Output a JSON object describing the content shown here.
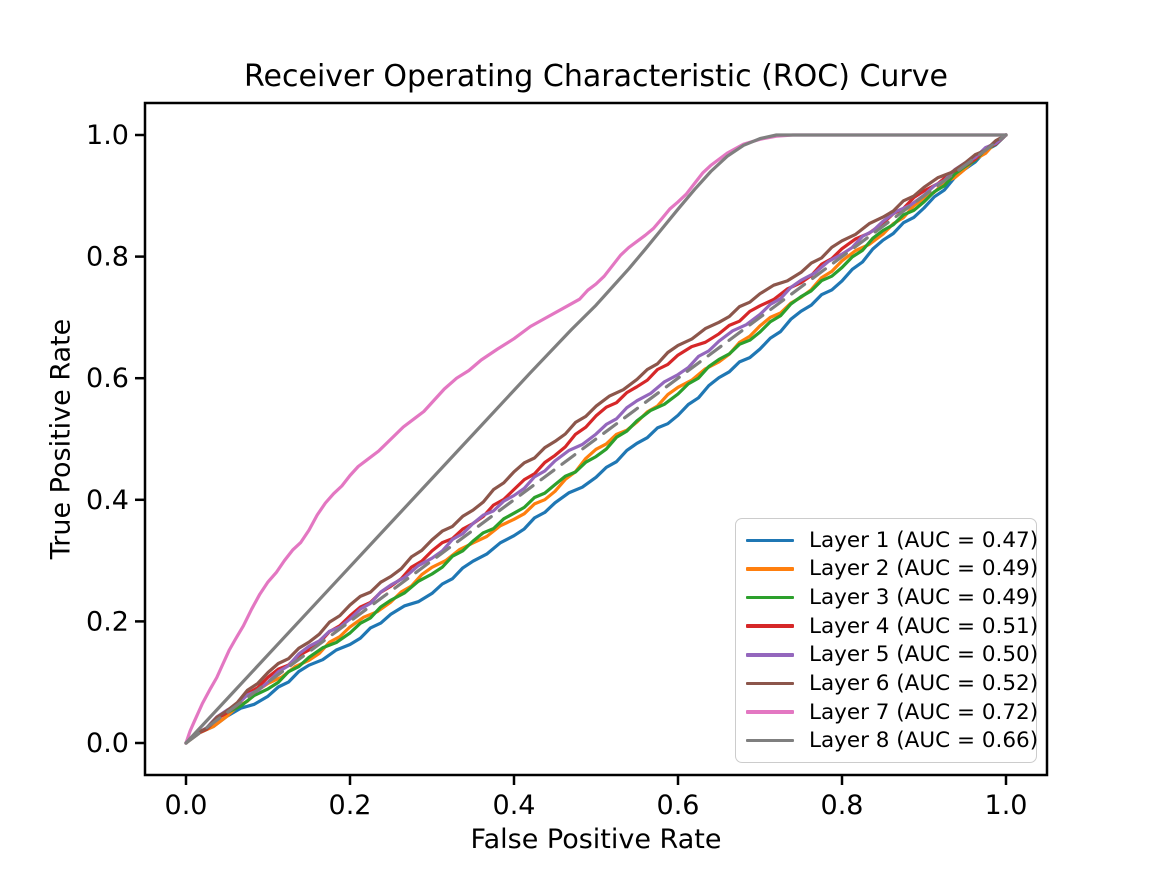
{
  "figure": {
    "background": "#ffffff",
    "axis_color": "#000000",
    "tick_label_color": "#000000"
  },
  "chart_data": {
    "type": "line",
    "title": "Receiver Operating Characteristic (ROC) Curve",
    "xlabel": "False Positive Rate",
    "ylabel": "True Positive Rate",
    "xlim": [
      -0.05,
      1.05
    ],
    "ylim": [
      -0.05,
      1.05
    ],
    "grid": false,
    "legend_position": "lower right",
    "legend_border_color": "#cccccc",
    "xticks": {
      "values": [
        0.0,
        0.2,
        0.4,
        0.6,
        0.8,
        1.0
      ],
      "labels": [
        "0.0",
        "0.2",
        "0.4",
        "0.6",
        "0.8",
        "1.0"
      ]
    },
    "yticks": {
      "values": [
        0.0,
        0.2,
        0.4,
        0.6,
        0.8,
        1.0
      ],
      "labels": [
        "0.0",
        "0.2",
        "0.4",
        "0.6",
        "0.8",
        "1.0"
      ]
    },
    "series": [
      {
        "name": "layer-1",
        "label": "Layer 1 (AUC = 0.47)",
        "auc": 0.47,
        "color": "#1f77b4",
        "style": "solid",
        "noisy": true,
        "in_legend": true,
        "points": [
          [
            0,
            0
          ],
          [
            0.05,
            0.044
          ],
          [
            0.1,
            0.077
          ],
          [
            0.15,
            0.128
          ],
          [
            0.2,
            0.162
          ],
          [
            0.25,
            0.212
          ],
          [
            0.3,
            0.246
          ],
          [
            0.35,
            0.299
          ],
          [
            0.4,
            0.341
          ],
          [
            0.45,
            0.395
          ],
          [
            0.5,
            0.437
          ],
          [
            0.55,
            0.493
          ],
          [
            0.6,
            0.539
          ],
          [
            0.65,
            0.601
          ],
          [
            0.7,
            0.648
          ],
          [
            0.75,
            0.71
          ],
          [
            0.8,
            0.76
          ],
          [
            0.85,
            0.827
          ],
          [
            0.9,
            0.88
          ],
          [
            0.95,
            0.944
          ],
          [
            1,
            1
          ]
        ]
      },
      {
        "name": "layer-2",
        "label": "Layer 2 (AUC = 0.49)",
        "auc": 0.49,
        "color": "#ff7f0e",
        "style": "solid",
        "noisy": true,
        "in_legend": true,
        "points": [
          [
            0,
            0
          ],
          [
            0.05,
            0.044
          ],
          [
            0.1,
            0.098
          ],
          [
            0.15,
            0.136
          ],
          [
            0.2,
            0.191
          ],
          [
            0.25,
            0.232
          ],
          [
            0.3,
            0.289
          ],
          [
            0.35,
            0.329
          ],
          [
            0.4,
            0.368
          ],
          [
            0.45,
            0.414
          ],
          [
            0.5,
            0.483
          ],
          [
            0.55,
            0.528
          ],
          [
            0.6,
            0.585
          ],
          [
            0.65,
            0.627
          ],
          [
            0.7,
            0.686
          ],
          [
            0.75,
            0.733
          ],
          [
            0.8,
            0.793
          ],
          [
            0.85,
            0.837
          ],
          [
            0.9,
            0.896
          ],
          [
            0.95,
            0.944
          ],
          [
            1,
            1
          ]
        ]
      },
      {
        "name": "layer-3",
        "label": "Layer 3 (AUC = 0.49)",
        "auc": 0.49,
        "color": "#2ca02c",
        "style": "solid",
        "noisy": true,
        "in_legend": true,
        "points": [
          [
            0,
            0
          ],
          [
            0.05,
            0.05
          ],
          [
            0.1,
            0.089
          ],
          [
            0.15,
            0.141
          ],
          [
            0.2,
            0.181
          ],
          [
            0.25,
            0.235
          ],
          [
            0.3,
            0.278
          ],
          [
            0.35,
            0.332
          ],
          [
            0.4,
            0.378
          ],
          [
            0.45,
            0.425
          ],
          [
            0.5,
            0.471
          ],
          [
            0.55,
            0.53
          ],
          [
            0.6,
            0.574
          ],
          [
            0.65,
            0.631
          ],
          [
            0.7,
            0.676
          ],
          [
            0.75,
            0.734
          ],
          [
            0.8,
            0.782
          ],
          [
            0.85,
            0.843
          ],
          [
            0.9,
            0.89
          ],
          [
            0.95,
            0.948
          ],
          [
            1,
            1
          ]
        ]
      },
      {
        "name": "layer-4",
        "label": "Layer 4 (AUC = 0.51)",
        "auc": 0.51,
        "color": "#d62728",
        "style": "solid",
        "noisy": true,
        "in_legend": true,
        "points": [
          [
            0,
            0
          ],
          [
            0.05,
            0.05
          ],
          [
            0.1,
            0.108
          ],
          [
            0.15,
            0.153
          ],
          [
            0.2,
            0.209
          ],
          [
            0.25,
            0.258
          ],
          [
            0.3,
            0.316
          ],
          [
            0.35,
            0.361
          ],
          [
            0.4,
            0.417
          ],
          [
            0.45,
            0.473
          ],
          [
            0.5,
            0.538
          ],
          [
            0.55,
            0.586
          ],
          [
            0.6,
            0.638
          ],
          [
            0.65,
            0.673
          ],
          [
            0.7,
            0.719
          ],
          [
            0.75,
            0.757
          ],
          [
            0.8,
            0.813
          ],
          [
            0.85,
            0.855
          ],
          [
            0.9,
            0.908
          ],
          [
            0.95,
            0.95
          ],
          [
            1,
            1
          ]
        ]
      },
      {
        "name": "layer-5",
        "label": "Layer 5 (AUC = 0.50)",
        "auc": 0.5,
        "color": "#9467bd",
        "style": "solid",
        "noisy": true,
        "in_legend": true,
        "points": [
          [
            0,
            0
          ],
          [
            0.05,
            0.054
          ],
          [
            0.1,
            0.1
          ],
          [
            0.15,
            0.159
          ],
          [
            0.2,
            0.204
          ],
          [
            0.25,
            0.26
          ],
          [
            0.3,
            0.304
          ],
          [
            0.35,
            0.361
          ],
          [
            0.4,
            0.407
          ],
          [
            0.45,
            0.464
          ],
          [
            0.5,
            0.508
          ],
          [
            0.55,
            0.563
          ],
          [
            0.6,
            0.606
          ],
          [
            0.65,
            0.661
          ],
          [
            0.7,
            0.705
          ],
          [
            0.75,
            0.761
          ],
          [
            0.8,
            0.804
          ],
          [
            0.85,
            0.858
          ],
          [
            0.9,
            0.901
          ],
          [
            0.95,
            0.954
          ],
          [
            1,
            1
          ]
        ]
      },
      {
        "name": "layer-6",
        "label": "Layer 6 (AUC = 0.52)",
        "auc": 0.52,
        "color": "#8c564b",
        "style": "solid",
        "noisy": true,
        "in_legend": true,
        "points": [
          [
            0,
            0
          ],
          [
            0.05,
            0.053
          ],
          [
            0.1,
            0.116
          ],
          [
            0.15,
            0.166
          ],
          [
            0.2,
            0.227
          ],
          [
            0.25,
            0.274
          ],
          [
            0.3,
            0.334
          ],
          [
            0.35,
            0.383
          ],
          [
            0.4,
            0.446
          ],
          [
            0.45,
            0.496
          ],
          [
            0.5,
            0.554
          ],
          [
            0.55,
            0.598
          ],
          [
            0.6,
            0.654
          ],
          [
            0.65,
            0.692
          ],
          [
            0.7,
            0.739
          ],
          [
            0.75,
            0.774
          ],
          [
            0.8,
            0.826
          ],
          [
            0.85,
            0.865
          ],
          [
            0.9,
            0.914
          ],
          [
            0.95,
            0.954
          ],
          [
            1,
            1
          ]
        ]
      },
      {
        "name": "chance-diagonal",
        "label": "",
        "color": "#7f7f7f",
        "style": "dashed",
        "noisy": false,
        "in_legend": false,
        "points": [
          [
            0,
            0
          ],
          [
            1,
            1
          ]
        ]
      },
      {
        "name": "layer-7",
        "label": "Layer 7 (AUC = 0.72)",
        "auc": 0.72,
        "color": "#e377c2",
        "style": "solid",
        "noisy": true,
        "in_legend": true,
        "points": [
          [
            0,
            0
          ],
          [
            0.01,
            0.035
          ],
          [
            0.02,
            0.065
          ],
          [
            0.03,
            0.09
          ],
          [
            0.045,
            0.13
          ],
          [
            0.06,
            0.17
          ],
          [
            0.08,
            0.22
          ],
          [
            0.1,
            0.265
          ],
          [
            0.12,
            0.3
          ],
          [
            0.14,
            0.33
          ],
          [
            0.16,
            0.375
          ],
          [
            0.18,
            0.41
          ],
          [
            0.2,
            0.44
          ],
          [
            0.22,
            0.465
          ],
          [
            0.25,
            0.5
          ],
          [
            0.28,
            0.535
          ],
          [
            0.3,
            0.56
          ],
          [
            0.33,
            0.6
          ],
          [
            0.36,
            0.63
          ],
          [
            0.38,
            0.648
          ],
          [
            0.4,
            0.665
          ],
          [
            0.42,
            0.685
          ],
          [
            0.44,
            0.7
          ],
          [
            0.46,
            0.715
          ],
          [
            0.48,
            0.73
          ],
          [
            0.5,
            0.755
          ],
          [
            0.52,
            0.785
          ],
          [
            0.54,
            0.815
          ],
          [
            0.56,
            0.835
          ],
          [
            0.58,
            0.862
          ],
          [
            0.6,
            0.89
          ],
          [
            0.62,
            0.92
          ],
          [
            0.64,
            0.95
          ],
          [
            0.66,
            0.97
          ],
          [
            0.68,
            0.985
          ],
          [
            0.7,
            0.993
          ],
          [
            0.72,
            0.998
          ],
          [
            0.74,
            1
          ],
          [
            1,
            1
          ]
        ]
      },
      {
        "name": "layer-8",
        "label": "Layer 8 (AUC = 0.66)",
        "auc": 0.66,
        "color": "#7f7f7f",
        "style": "solid",
        "noisy": false,
        "in_legend": true,
        "points": [
          [
            0,
            0
          ],
          [
            0.06,
            0.087
          ],
          [
            0.12,
            0.174
          ],
          [
            0.18,
            0.261
          ],
          [
            0.24,
            0.348
          ],
          [
            0.3,
            0.435
          ],
          [
            0.36,
            0.522
          ],
          [
            0.42,
            0.609
          ],
          [
            0.47,
            0.68
          ],
          [
            0.5,
            0.72
          ],
          [
            0.52,
            0.75
          ],
          [
            0.54,
            0.78
          ],
          [
            0.56,
            0.812
          ],
          [
            0.58,
            0.845
          ],
          [
            0.6,
            0.878
          ],
          [
            0.62,
            0.91
          ],
          [
            0.64,
            0.94
          ],
          [
            0.66,
            0.965
          ],
          [
            0.68,
            0.983
          ],
          [
            0.7,
            0.994
          ],
          [
            0.72,
            1
          ],
          [
            1,
            1
          ]
        ]
      }
    ]
  }
}
